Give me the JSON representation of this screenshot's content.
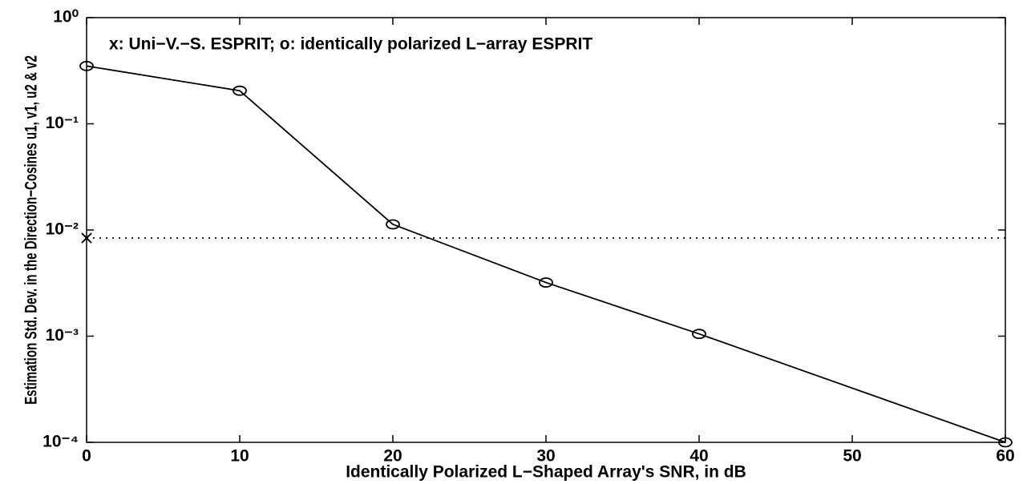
{
  "chart_data": {
    "type": "line",
    "annotation": "x: Uni−V.−S. ESPRIT; o: identically polarized L−array ESPRIT",
    "xlabel": "Identically Polarized L−Shaped Array's SNR, in dB",
    "ylabel": "Estimation Std. Dev. in the Direction−Cosines u1, v1, u2 & v2",
    "xlim": [
      0,
      60
    ],
    "xticks": [
      0,
      10,
      20,
      30,
      40,
      50,
      60
    ],
    "ylim": [
      0.0001,
      1
    ],
    "yscale": "log",
    "yticks": [
      {
        "value": 0.0001,
        "label": "10⁻⁴"
      },
      {
        "value": 0.001,
        "label": "10⁻³"
      },
      {
        "value": 0.01,
        "label": "10⁻²"
      },
      {
        "value": 0.1,
        "label": "10⁻¹"
      },
      {
        "value": 1,
        "label": "10⁰"
      }
    ],
    "series": [
      {
        "color": "#000000",
        "marker": "o",
        "linestyle": "solid",
        "x": [
          0,
          10,
          20,
          30,
          40,
          60
        ],
        "values": [
          0.35,
          0.205,
          0.0113,
          0.0032,
          0.00105,
          0.0001
        ]
      },
      {
        "color": "#000000",
        "marker": "x",
        "linestyle": "dotted",
        "hline": true,
        "x": [
          0
        ],
        "values": [
          0.0084
        ]
      }
    ]
  }
}
